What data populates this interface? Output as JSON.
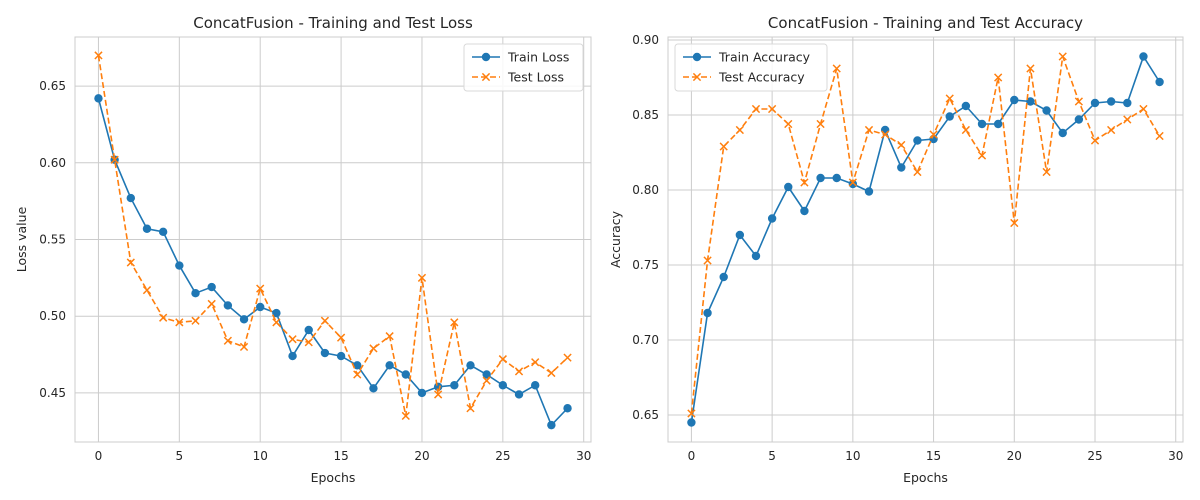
{
  "colors": {
    "train": "#1f77b4",
    "test": "#ff7f0e",
    "grid": "#cccccc",
    "spine": "#cccccc",
    "text": "#262626"
  },
  "chart_data": [
    {
      "type": "line",
      "title": "ConcatFusion - Training and Test Loss",
      "xlabel": "Epochs",
      "ylabel": "Loss value",
      "xlim": [
        -1.45,
        30.45
      ],
      "ylim": [
        0.418,
        0.682
      ],
      "xticks": [
        0,
        5,
        10,
        15,
        20,
        25,
        30
      ],
      "yticks": [
        0.45,
        0.5,
        0.55,
        0.6,
        0.65
      ],
      "grid": true,
      "legend_position": "top-right",
      "x": [
        0,
        1,
        2,
        3,
        4,
        5,
        6,
        7,
        8,
        9,
        10,
        11,
        12,
        13,
        14,
        15,
        16,
        17,
        18,
        19,
        20,
        21,
        22,
        23,
        24,
        25,
        26,
        27,
        28,
        29
      ],
      "series": [
        {
          "name": "Train Loss",
          "style": "solid",
          "marker": "circle",
          "color": "#1f77b4",
          "values": [
            0.642,
            0.602,
            0.577,
            0.557,
            0.555,
            0.533,
            0.515,
            0.519,
            0.507,
            0.498,
            0.506,
            0.502,
            0.474,
            0.491,
            0.476,
            0.474,
            0.468,
            0.453,
            0.468,
            0.462,
            0.45,
            0.454,
            0.455,
            0.468,
            0.462,
            0.455,
            0.449,
            0.455,
            0.429,
            0.44
          ]
        },
        {
          "name": "Test Loss",
          "style": "dashed",
          "marker": "x",
          "color": "#ff7f0e",
          "values": [
            0.67,
            0.602,
            0.535,
            0.517,
            0.499,
            0.496,
            0.497,
            0.508,
            0.484,
            0.48,
            0.518,
            0.496,
            0.485,
            0.483,
            0.497,
            0.486,
            0.462,
            0.479,
            0.487,
            0.435,
            0.525,
            0.449,
            0.496,
            0.44,
            0.458,
            0.472,
            0.464,
            0.47,
            0.463,
            0.473
          ]
        }
      ]
    },
    {
      "type": "line",
      "title": "ConcatFusion - Training and Test Accuracy",
      "xlabel": "Epochs",
      "ylabel": "Accuracy",
      "xlim": [
        -1.45,
        30.45
      ],
      "ylim": [
        0.632,
        0.902
      ],
      "xticks": [
        0,
        5,
        10,
        15,
        20,
        25,
        30
      ],
      "yticks": [
        0.65,
        0.7,
        0.75,
        0.8,
        0.85,
        0.9
      ],
      "grid": true,
      "legend_position": "top-left",
      "x": [
        0,
        1,
        2,
        3,
        4,
        5,
        6,
        7,
        8,
        9,
        10,
        11,
        12,
        13,
        14,
        15,
        16,
        17,
        18,
        19,
        20,
        21,
        22,
        23,
        24,
        25,
        26,
        27,
        28,
        29
      ],
      "series": [
        {
          "name": "Train Accuracy",
          "style": "solid",
          "marker": "circle",
          "color": "#1f77b4",
          "values": [
            0.645,
            0.718,
            0.742,
            0.77,
            0.756,
            0.781,
            0.802,
            0.786,
            0.808,
            0.808,
            0.804,
            0.799,
            0.84,
            0.815,
            0.833,
            0.834,
            0.849,
            0.856,
            0.844,
            0.844,
            0.86,
            0.859,
            0.853,
            0.838,
            0.847,
            0.858,
            0.859,
            0.858,
            0.889,
            0.872
          ]
        },
        {
          "name": "Test Accuracy",
          "style": "dashed",
          "marker": "x",
          "color": "#ff7f0e",
          "values": [
            0.651,
            0.753,
            0.829,
            0.84,
            0.854,
            0.854,
            0.844,
            0.805,
            0.844,
            0.881,
            0.805,
            0.84,
            0.837,
            0.83,
            0.812,
            0.837,
            0.861,
            0.84,
            0.823,
            0.875,
            0.778,
            0.881,
            0.812,
            0.889,
            0.859,
            0.833,
            0.84,
            0.847,
            0.854,
            0.836
          ]
        }
      ]
    }
  ]
}
